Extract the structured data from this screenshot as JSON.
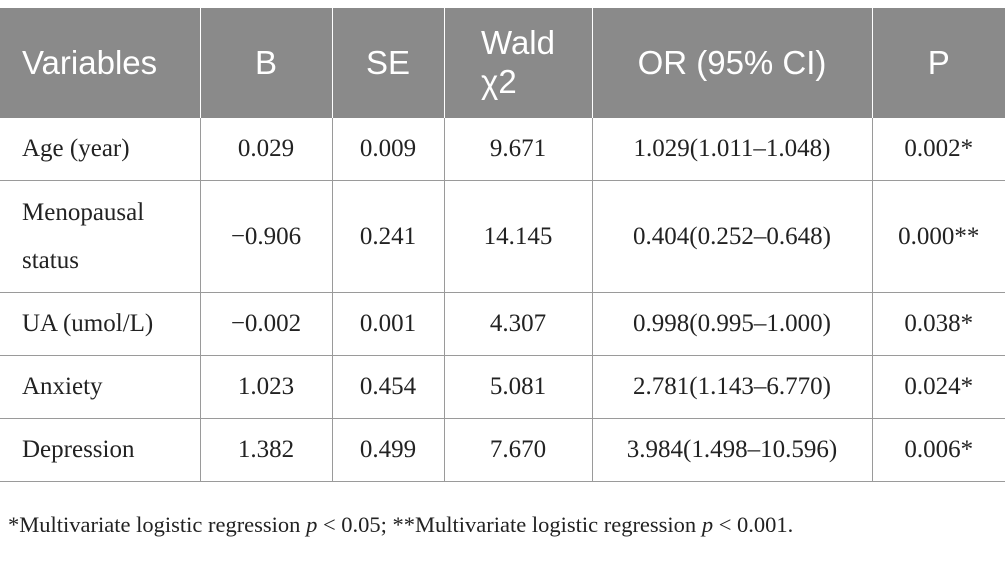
{
  "table": {
    "headers": {
      "variables": "Variables",
      "b": "B",
      "se": "SE",
      "wald_line1": "Wald",
      "wald_line2": "χ2",
      "or": "OR (95% CI)",
      "p": "P"
    },
    "rows": [
      {
        "variable": "Age (year)",
        "b": "0.029",
        "se": "0.009",
        "wald": "9.671",
        "or": "1.029(1.011–1.048)",
        "p": "0.002*"
      },
      {
        "variable_line1": "Menopausal",
        "variable_line2": "status",
        "b": "−0.906",
        "se": "0.241",
        "wald": "14.145",
        "or": "0.404(0.252–0.648)",
        "p": "0.000**"
      },
      {
        "variable": "UA (umol/L)",
        "b": "−0.002",
        "se": "0.001",
        "wald": "4.307",
        "or": "0.998(0.995–1.000)",
        "p": "0.038*"
      },
      {
        "variable": "Anxiety",
        "b": "1.023",
        "se": "0.454",
        "wald": "5.081",
        "or": "2.781(1.143–6.770)",
        "p": "0.024*"
      },
      {
        "variable": "Depression",
        "b": "1.382",
        "se": "0.499",
        "wald": "7.670",
        "or": "3.984(1.498–10.596)",
        "p": "0.006*"
      }
    ]
  },
  "footnote": {
    "part1": "*Multivariate logistic regression ",
    "p1": "p",
    "part2": " < 0.05; **Multivariate logistic regression ",
    "p2": "p",
    "part3": " < 0.001."
  },
  "colors": {
    "header_bg": "#8a8a8a",
    "header_text": "#ffffff",
    "grid": "#9a9a9a",
    "body_text": "#222222"
  }
}
